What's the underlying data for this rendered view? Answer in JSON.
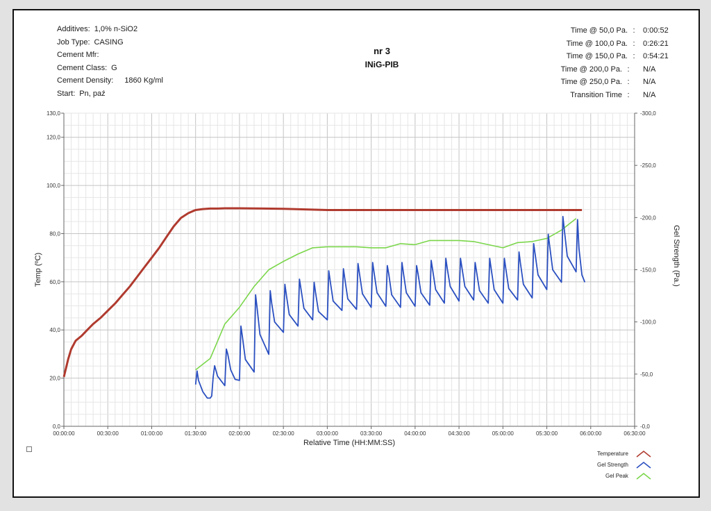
{
  "header": {
    "left": [
      {
        "label": "Additives:",
        "value": "1,0% n-SiO2"
      },
      {
        "label": "Job Type:",
        "value": "CASING"
      },
      {
        "label": "Cement Mfr:",
        "value": ""
      },
      {
        "label": "Cement Class:",
        "value": "G"
      },
      {
        "label": "Cement Density:",
        "value": "1860 Kg/ml"
      },
      {
        "label": "Start:",
        "value": "Pn, paź"
      }
    ],
    "title": "nr  3",
    "subtitle": "INiG-PIB",
    "right": [
      {
        "label": "Time @ 50,0 Pa.",
        "colon": ":",
        "value": "0:00:52"
      },
      {
        "label": "Time @ 100,0 Pa.",
        "colon": ":",
        "value": "0:26:21"
      },
      {
        "label": "Time @ 150,0 Pa.",
        "colon": ":",
        "value": "0:54:21"
      },
      {
        "label": "Time @ 200,0 Pa.",
        "colon": ":",
        "value": "N/A"
      },
      {
        "label": "Time @ 250,0 Pa.",
        "colon": ":",
        "value": "N/A"
      },
      {
        "label": "Transition Time",
        "colon": ":",
        "value": "N/A"
      }
    ]
  },
  "legend": [
    {
      "label": "Temperature",
      "color": "#b03a2e"
    },
    {
      "label": "Gel Strength",
      "color": "#2a4fc0"
    },
    {
      "label": "Gel Peak",
      "color": "#7ad64a"
    }
  ],
  "chart_data": {
    "type": "line",
    "xlabel": "Relative Time (HH:MM:SS)",
    "ylabel_left": "Temp (ºC)",
    "ylabel_right": "Gel Strength (Pa.)",
    "x_unit": "minutes",
    "xlim": [
      0,
      390
    ],
    "ylim_left": [
      0,
      130
    ],
    "ylim_right": [
      0,
      -300
    ],
    "x_ticks": [
      "00:00:00",
      "00:30:00",
      "01:00:00",
      "01:30:00",
      "02:00:00",
      "02:30:00",
      "03:00:00",
      "03:30:00",
      "04:00:00",
      "04:30:00",
      "05:00:00",
      "05:30:00",
      "06:00:00",
      "06:30:00"
    ],
    "y_left_ticks": [
      "0,0",
      "20,0",
      "40,0",
      "60,0",
      "80,0",
      "100,0",
      "120,0",
      "130,0"
    ],
    "y_right_ticks": [
      "-0,0",
      "-50,0",
      "-100,0",
      "-150,0",
      "-200,0",
      "-250,0",
      "-300,0"
    ],
    "grid": true,
    "series": [
      {
        "name": "Temperature",
        "axis": "left",
        "color": "#b03a2e",
        "x": [
          0,
          3,
          5,
          8,
          12,
          16,
          20,
          25,
          30,
          35,
          40,
          45,
          50,
          55,
          60,
          65,
          70,
          75,
          80,
          85,
          88,
          90,
          95,
          100,
          105,
          110,
          120,
          150,
          180,
          210,
          240,
          270,
          300,
          330,
          354
        ],
        "y": [
          20.5,
          28,
          32,
          35.5,
          37.5,
          40,
          42.5,
          45,
          48,
          51,
          54.5,
          58,
          62,
          66,
          70,
          74,
          78.5,
          83,
          86.5,
          88.5,
          89.3,
          89.8,
          90.2,
          90.4,
          90.4,
          90.5,
          90.5,
          90.3,
          89.8,
          89.8,
          89.8,
          89.8,
          89.8,
          89.8,
          89.8
        ]
      },
      {
        "name": "Gel Strength",
        "axis": "right",
        "color": "#2a4fc0",
        "x": [
          90,
          91,
          92,
          95,
          98,
          100,
          101,
          102,
          103,
          105,
          110,
          111,
          112,
          114,
          117,
          120,
          121,
          122,
          124,
          130,
          131,
          132,
          134,
          140,
          141,
          142,
          144,
          150,
          151,
          152,
          154,
          160,
          161,
          162,
          164,
          170,
          171,
          172,
          174,
          180,
          181,
          182,
          184,
          190,
          191,
          192,
          194,
          200,
          201,
          202,
          204,
          210,
          211,
          212,
          214,
          220,
          221,
          222,
          224,
          230,
          231,
          232,
          234,
          240,
          241,
          242,
          244,
          250,
          251,
          252,
          254,
          260,
          261,
          262,
          264,
          270,
          271,
          272,
          274,
          280,
          281,
          282,
          284,
          290,
          291,
          292,
          294,
          300,
          301,
          302,
          304,
          310,
          311,
          312,
          314,
          320,
          321,
          322,
          324,
          330,
          331,
          332,
          334,
          340,
          341,
          342,
          344,
          350,
          351,
          352,
          354,
          356
        ],
        "y": [
          -40,
          -53,
          -44,
          -33,
          -27,
          -27,
          -29,
          -47,
          -58,
          -48,
          -39,
          -74,
          -69,
          -54,
          -45,
          -44,
          -96,
          -86,
          -64,
          -52,
          -126,
          -114,
          -88,
          -69,
          -130,
          -118,
          -100,
          -90,
          -136,
          -126,
          -107,
          -96,
          -141,
          -132,
          -113,
          -102,
          -138,
          -128,
          -110,
          -102,
          -149,
          -139,
          -120,
          -111,
          -151,
          -141,
          -122,
          -112,
          -156,
          -146,
          -127,
          -114,
          -157,
          -147,
          -128,
          -115,
          -154,
          -146,
          -126,
          -114,
          -157,
          -147,
          -128,
          -115,
          -154,
          -146,
          -128,
          -116,
          -159,
          -150,
          -131,
          -118,
          -161,
          -151,
          -134,
          -120,
          -161,
          -152,
          -134,
          -121,
          -157,
          -148,
          -130,
          -118,
          -161,
          -151,
          -131,
          -118,
          -161,
          -151,
          -132,
          -121,
          -167,
          -156,
          -136,
          -123,
          -175,
          -165,
          -145,
          -131,
          -184,
          -172,
          -150,
          -138,
          -201,
          -188,
          -163,
          -148,
          -198,
          -170,
          -145,
          -138
        ]
      },
      {
        "name": "Gel Peak",
        "axis": "right",
        "color": "#7ad64a",
        "x": [
          90,
          100,
          110,
          120,
          130,
          140,
          150,
          160,
          170,
          180,
          190,
          200,
          210,
          220,
          230,
          240,
          250,
          260,
          270,
          280,
          290,
          300,
          310,
          320,
          330,
          340,
          350
        ],
        "y": [
          -54,
          -65,
          -98,
          -114,
          -134,
          -150,
          -158,
          -165,
          -171,
          -172,
          -172,
          -172,
          -171,
          -171,
          -175,
          -174,
          -178,
          -178,
          -178,
          -177,
          -174,
          -171,
          -176,
          -177,
          -180,
          -188,
          -199
        ]
      }
    ]
  }
}
